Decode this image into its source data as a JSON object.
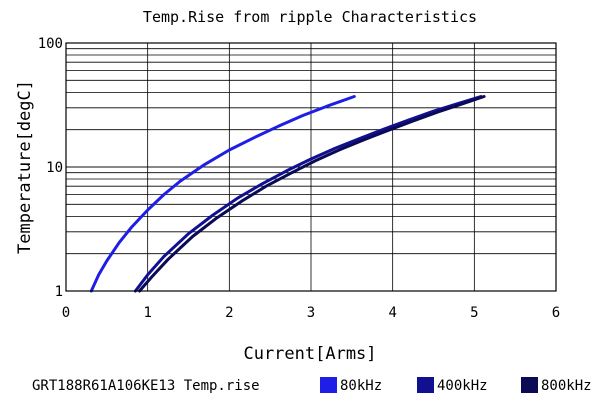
{
  "chart_data": {
    "type": "line",
    "title": "Temp.Rise from ripple Characteristics",
    "xlabel": "Current[Arms]",
    "ylabel": "Temperature[degC]",
    "xlim": [
      0,
      6
    ],
    "ylim": [
      1,
      100
    ],
    "y_scale": "log",
    "grid": true,
    "x_ticks": [
      "0",
      "1",
      "2",
      "3",
      "4",
      "5",
      "6"
    ],
    "y_ticks": [
      "1",
      "10",
      "100"
    ],
    "legend_prefix": "GRT188R61A106KE13 Temp.rise",
    "legend_position": "bottom",
    "series": [
      {
        "name": "80kHz",
        "color": "#1e1ee6",
        "x": [
          0.31,
          0.4,
          0.5,
          0.65,
          0.8,
          1.0,
          1.2,
          1.4,
          1.7,
          2.0,
          2.3,
          2.6,
          2.9,
          3.2,
          3.53
        ],
        "y": [
          1.0,
          1.35,
          1.75,
          2.45,
          3.25,
          4.5,
          6.0,
          7.7,
          10.5,
          13.7,
          17.2,
          21.3,
          26.0,
          31.0,
          37.0
        ]
      },
      {
        "name": "400kHz",
        "color": "#101090",
        "x": [
          0.85,
          1.0,
          1.2,
          1.5,
          1.8,
          2.1,
          2.4,
          2.7,
          3.0,
          3.3,
          3.6,
          3.9,
          4.2,
          4.5,
          4.8,
          5.08
        ],
        "y": [
          1.0,
          1.35,
          1.9,
          2.9,
          4.1,
          5.6,
          7.3,
          9.3,
          11.6,
          14.2,
          17.0,
          20.3,
          24.0,
          28.2,
          32.5,
          37.0
        ]
      },
      {
        "name": "800kHz",
        "color": "#0a0a55",
        "x": [
          0.9,
          1.05,
          1.25,
          1.55,
          1.85,
          2.15,
          2.45,
          2.75,
          3.05,
          3.35,
          3.65,
          3.95,
          4.25,
          4.55,
          4.85,
          5.12
        ],
        "y": [
          1.0,
          1.3,
          1.8,
          2.75,
          3.9,
          5.3,
          7.0,
          8.9,
          11.2,
          13.8,
          16.6,
          19.8,
          23.5,
          27.7,
          32.2,
          37.0
        ]
      }
    ]
  }
}
